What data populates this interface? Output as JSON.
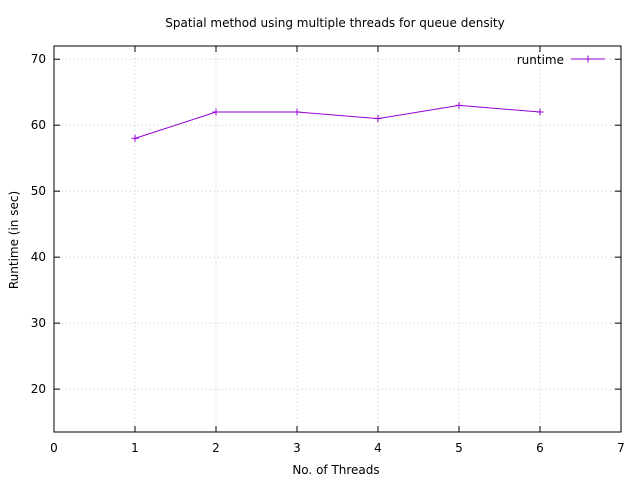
{
  "chart_data": {
    "type": "line",
    "title": "Spatial method using multiple threads for queue density",
    "xlabel": "No. of Threads",
    "ylabel": "Runtime (in sec)",
    "xlim": [
      0,
      7
    ],
    "ylim": [
      13.5,
      72
    ],
    "x_ticks": [
      "0",
      "1",
      "2",
      "3",
      "4",
      "5",
      "6",
      "7"
    ],
    "y_ticks": [
      "20",
      "30",
      "40",
      "50",
      "60",
      "70"
    ],
    "grid": true,
    "legend_position": "top-right",
    "series": [
      {
        "name": "runtime",
        "color": "#9400d3",
        "marker": "plus",
        "x": [
          1,
          2,
          3,
          4,
          5,
          6
        ],
        "y": [
          58,
          62,
          62,
          61,
          63,
          62
        ]
      }
    ]
  }
}
